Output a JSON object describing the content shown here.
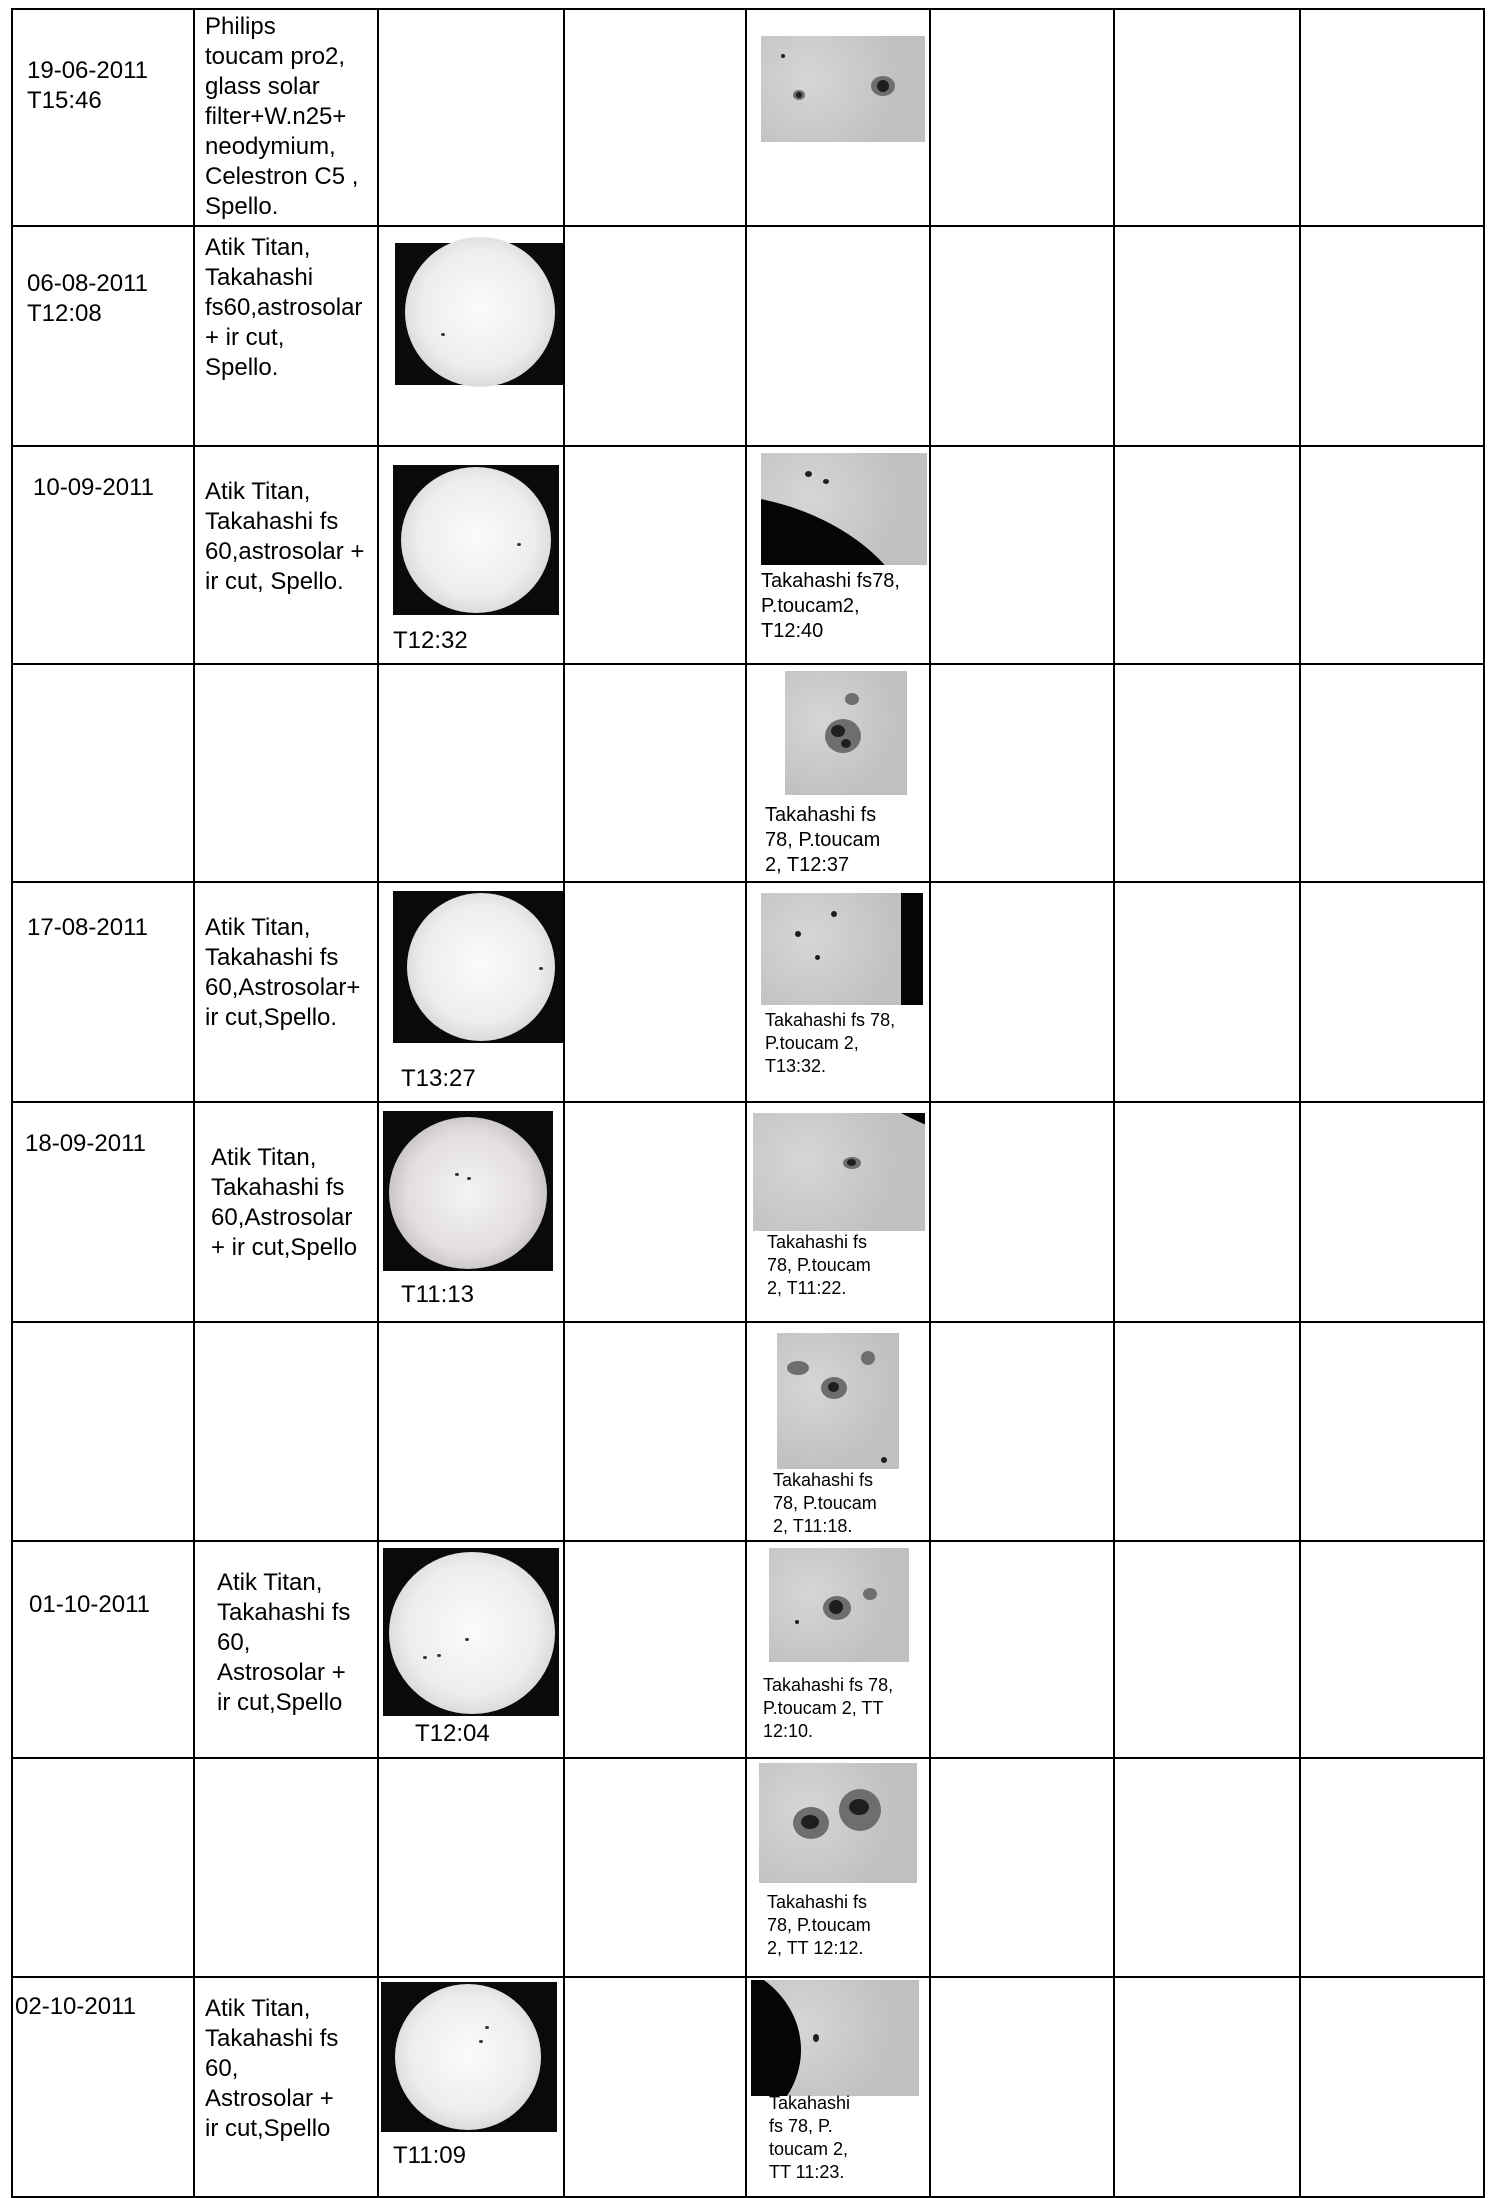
{
  "rows": [
    {
      "date": "19-06-2011\nT15:46",
      "equipment": "Philips\ntoucam pro2,\nglass solar\nfilter+W.n25+\nneodymium,\nCelestron C5 ,\nSpello.",
      "fulldisk_time": "",
      "detail_caption": ""
    },
    {
      "date": "06-08-2011\nT12:08",
      "equipment": "Atik Titan,\nTakahashi\nfs60,astrosolar\n+ ir cut,\nSpello.",
      "fulldisk_time": "",
      "detail_caption": ""
    },
    {
      "date": "10-09-2011",
      "equipment": "Atik Titan,\nTakahashi fs\n60,astrosolar +\nir cut, Spello.",
      "fulldisk_time": "T12:32",
      "detail_caption": "Takahashi fs78,\nP.toucam2,\nT12:40"
    },
    {
      "date": "",
      "equipment": "",
      "fulldisk_time": "",
      "detail_caption": "Takahashi fs\n78, P.toucam\n2, T12:37"
    },
    {
      "date": "17-08-2011",
      "equipment": "Atik Titan,\nTakahashi fs\n60,Astrosolar+\nir cut,Spello.",
      "fulldisk_time": "T13:27",
      "detail_caption": "Takahashi fs 78,\nP.toucam 2,\nT13:32."
    },
    {
      "date": "18-09-2011",
      "equipment": "Atik Titan,\nTakahashi fs\n60,Astrosolar\n+ ir cut,Spello",
      "fulldisk_time": "T11:13",
      "detail_caption": "Takahashi fs\n78, P.toucam\n2, T11:22."
    },
    {
      "date": "",
      "equipment": "",
      "fulldisk_time": "",
      "detail_caption": "Takahashi fs\n78, P.toucam\n2, T11:18."
    },
    {
      "date": "01-10-2011",
      "equipment": "Atik Titan,\nTakahashi fs\n60,\nAstrosolar +\nir cut,Spello",
      "fulldisk_time": "T12:04",
      "detail_caption": "Takahashi fs 78,\nP.toucam 2, TT\n12:10."
    },
    {
      "date": "",
      "equipment": "",
      "fulldisk_time": "",
      "detail_caption": "Takahashi fs\n78, P.toucam\n2, TT 12:12."
    },
    {
      "date": "02-10-2011",
      "equipment": "Atik Titan,\nTakahashi fs\n60,\nAstrosolar +\nir cut,Spello",
      "fulldisk_time": "T11:09",
      "detail_caption": "Takahashi\nfs 78, P.\ntoucam 2,\nTT 11:23."
    }
  ],
  "images": {
    "fulldisk": "solar-full-disk-photo",
    "detail": "sunspot-closeup-photo"
  }
}
